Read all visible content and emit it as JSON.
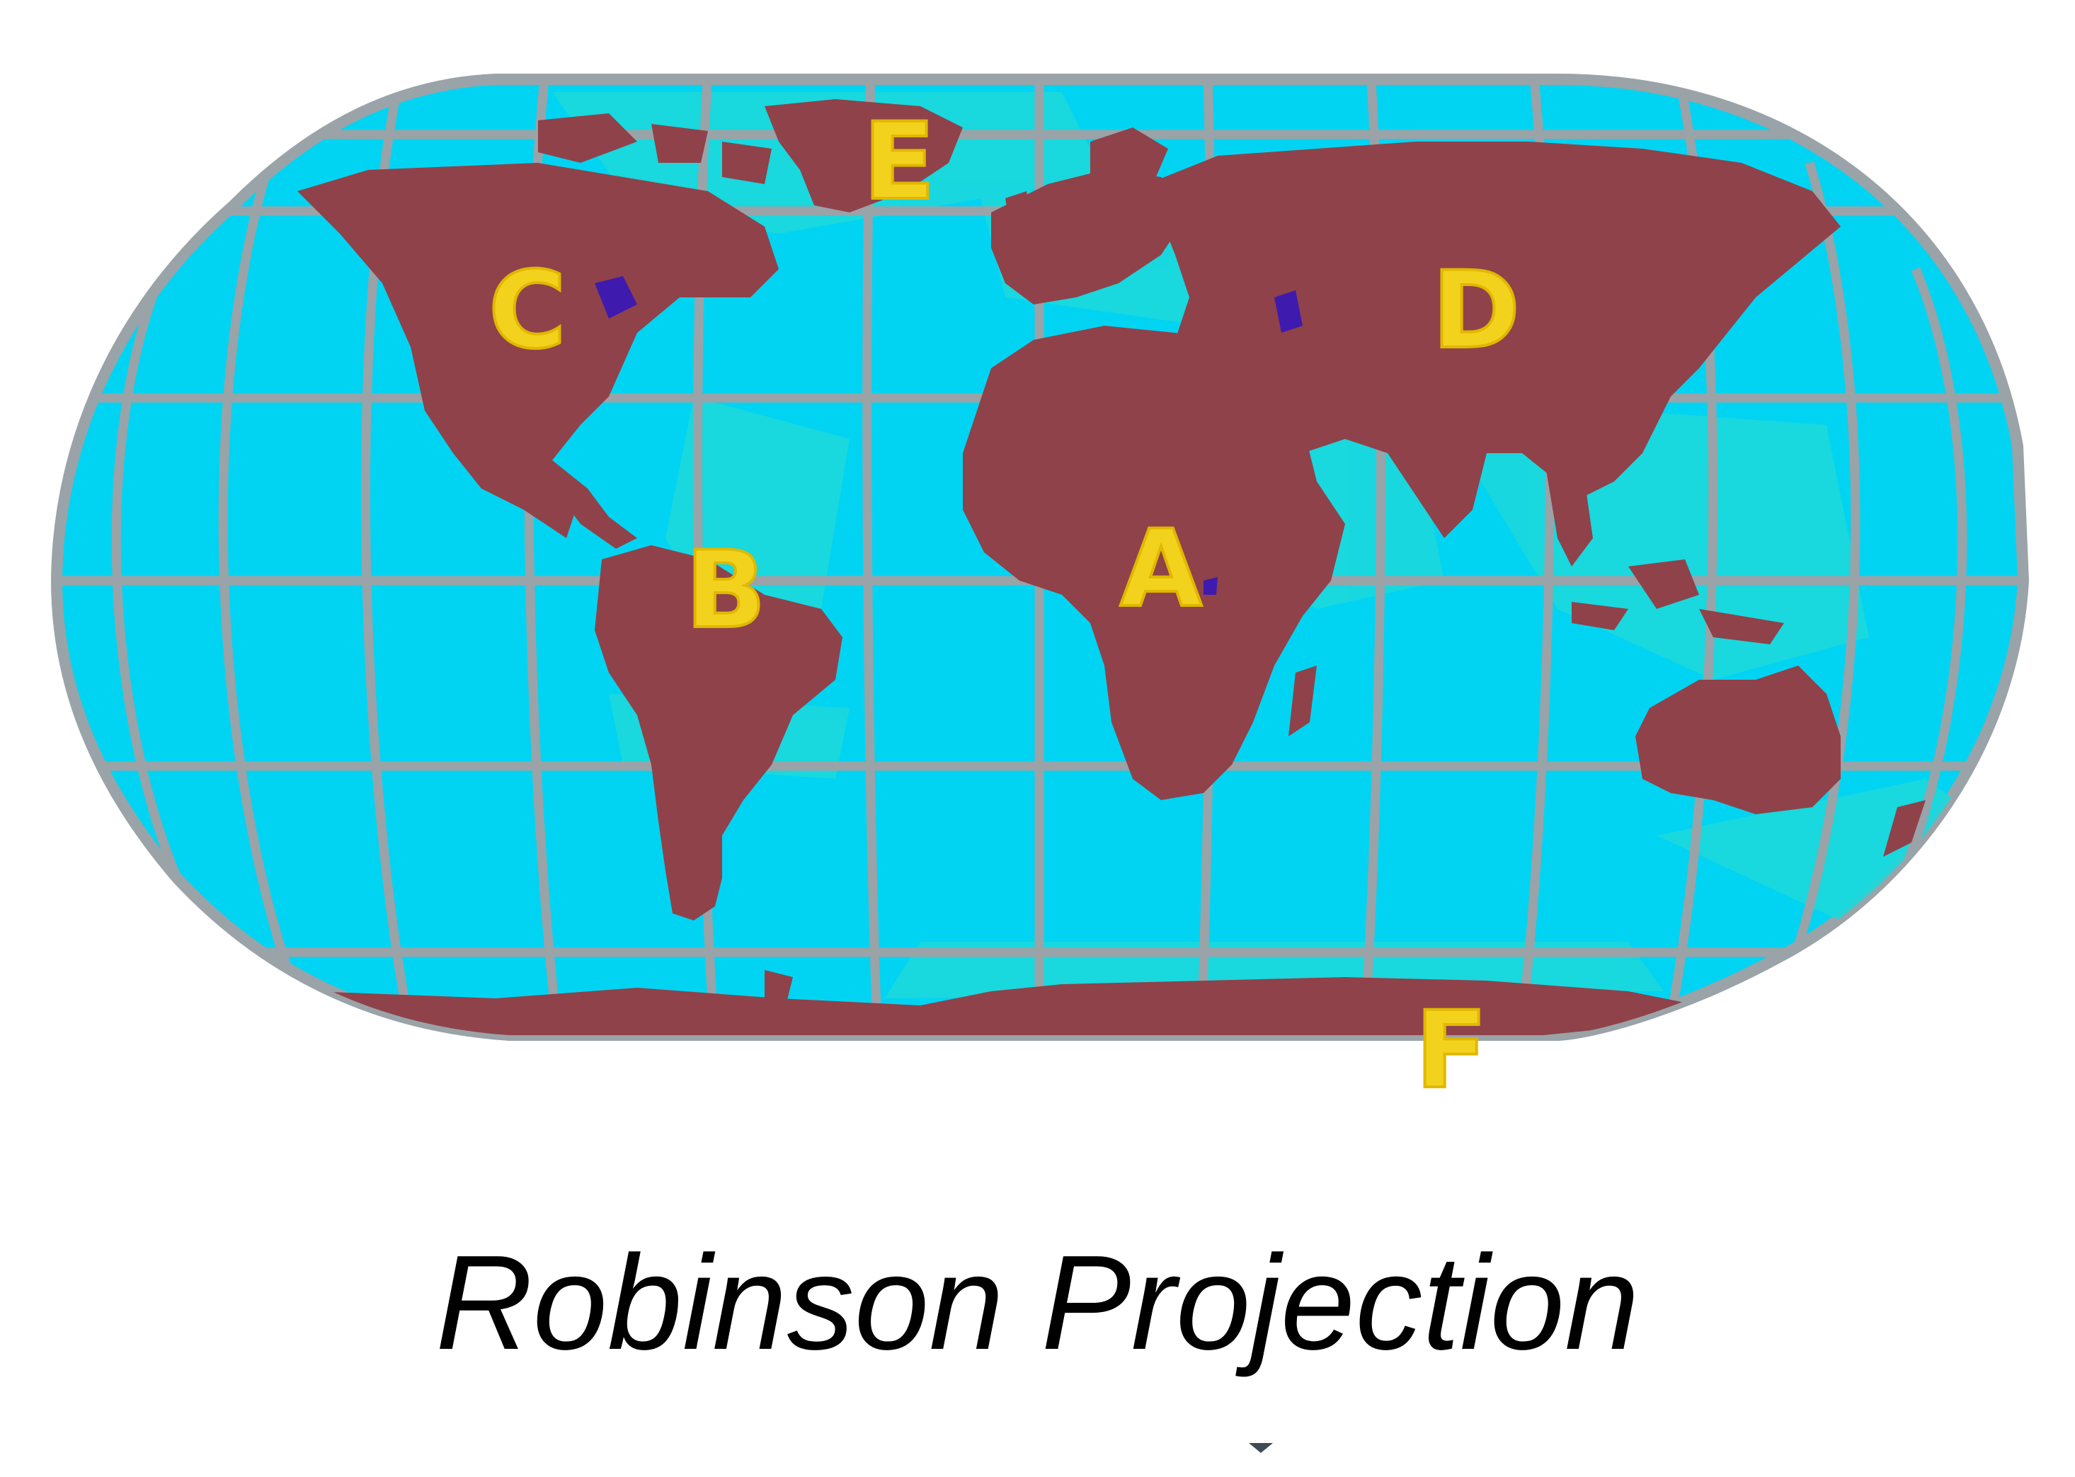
{
  "map": {
    "title": "Robinson Projection",
    "projection": "Robinson",
    "labels": [
      {
        "id": "A",
        "text": "A",
        "feature": "Africa"
      },
      {
        "id": "B",
        "text": "B",
        "feature": "South America"
      },
      {
        "id": "C",
        "text": "C",
        "feature": "North America"
      },
      {
        "id": "D",
        "text": "D",
        "feature": "Asia"
      },
      {
        "id": "E",
        "text": "E",
        "feature": "Greenland"
      },
      {
        "id": "F",
        "text": "F",
        "feature": "Antarctica"
      }
    ],
    "colors": {
      "ocean": "#00d4f2",
      "shallow_water": "#1cd8dc",
      "land": "#8f4249",
      "graticule": "#9aa3a8",
      "label": "#f2d21c",
      "lakes": "#2a10c8",
      "title": "#000000"
    }
  }
}
